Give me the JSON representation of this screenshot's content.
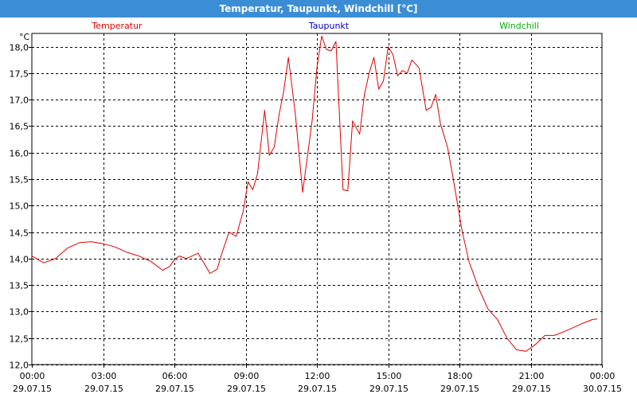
{
  "window": {
    "title": "Temperatur, Taupunkt, Windchill [°C]"
  },
  "chart_data": {
    "type": "line",
    "title": "Temperatur, Taupunkt, Windchill [°C]",
    "ylabel": "°C",
    "ylim": [
      12.0,
      18.25
    ],
    "y_ticks": [
      "12,0",
      "12,5",
      "13,0",
      "13,5",
      "14,0",
      "14,5",
      "15,0",
      "15,5",
      "16,0",
      "16,5",
      "17,0",
      "17,5",
      "18,0"
    ],
    "y_tick_values": [
      12.0,
      12.5,
      13.0,
      13.5,
      14.0,
      14.5,
      15.0,
      15.5,
      16.0,
      16.5,
      17.0,
      17.5,
      18.0
    ],
    "x_ticks": [
      {
        "time": "00:00",
        "date": "29.07.15"
      },
      {
        "time": "03:00",
        "date": "29.07.15"
      },
      {
        "time": "06:00",
        "date": "29.07.15"
      },
      {
        "time": "09:00",
        "date": "29.07.15"
      },
      {
        "time": "12:00",
        "date": "29.07.15"
      },
      {
        "time": "15:00",
        "date": "29.07.15"
      },
      {
        "time": "18:00",
        "date": "29.07.15"
      },
      {
        "time": "21:00",
        "date": "29.07.15"
      },
      {
        "time": "00:00",
        "date": "30.07.15"
      }
    ],
    "xlim_hours": [
      0,
      24
    ],
    "grid": true,
    "legend": [
      {
        "name": "Temperatur",
        "color": "#e00000"
      },
      {
        "name": "Taupunkt",
        "color": "#0000c0"
      },
      {
        "name": "Windchill",
        "color": "#00b000"
      }
    ],
    "series": [
      {
        "name": "Temperatur",
        "color": "#e00000",
        "x_hours": [
          0,
          0.5,
          1.0,
          1.5,
          2.0,
          2.5,
          3.0,
          3.5,
          4.0,
          4.5,
          5.0,
          5.5,
          5.8,
          6.0,
          6.2,
          6.5,
          7.0,
          7.5,
          7.8,
          8.0,
          8.3,
          8.6,
          8.9,
          9.1,
          9.3,
          9.5,
          9.8,
          10.0,
          10.2,
          10.4,
          10.6,
          10.8,
          11.1,
          11.4,
          11.8,
          12.0,
          12.2,
          12.4,
          12.6,
          12.8,
          13.1,
          13.3,
          13.5,
          13.8,
          14.0,
          14.2,
          14.4,
          14.6,
          14.8,
          15.0,
          15.2,
          15.4,
          15.6,
          15.8,
          16.0,
          16.3,
          16.6,
          16.8,
          17.0,
          17.2,
          17.5,
          17.8,
          18.1,
          18.4,
          18.8,
          19.2,
          19.6,
          20.0,
          20.4,
          20.8,
          21.2,
          21.6,
          22.0,
          22.4,
          22.8,
          23.2,
          23.6,
          23.8
        ],
        "values": [
          14.05,
          13.92,
          14.0,
          14.2,
          14.3,
          14.32,
          14.28,
          14.22,
          14.12,
          14.05,
          13.95,
          13.78,
          13.85,
          13.98,
          14.05,
          14.0,
          14.1,
          13.72,
          13.8,
          14.1,
          14.5,
          14.42,
          14.9,
          15.45,
          15.3,
          15.6,
          16.8,
          15.95,
          16.1,
          16.7,
          17.15,
          17.8,
          16.7,
          15.25,
          16.6,
          17.6,
          18.2,
          17.95,
          17.92,
          18.1,
          15.3,
          15.28,
          16.6,
          16.35,
          17.1,
          17.5,
          17.8,
          17.2,
          17.35,
          18.0,
          17.85,
          17.45,
          17.55,
          17.5,
          17.75,
          17.6,
          16.8,
          16.85,
          17.1,
          16.55,
          16.1,
          15.35,
          14.55,
          13.95,
          13.45,
          13.05,
          12.85,
          12.5,
          12.28,
          12.25,
          12.38,
          12.55,
          12.55,
          12.62,
          12.7,
          12.78,
          12.85,
          12.86
        ]
      }
    ]
  }
}
